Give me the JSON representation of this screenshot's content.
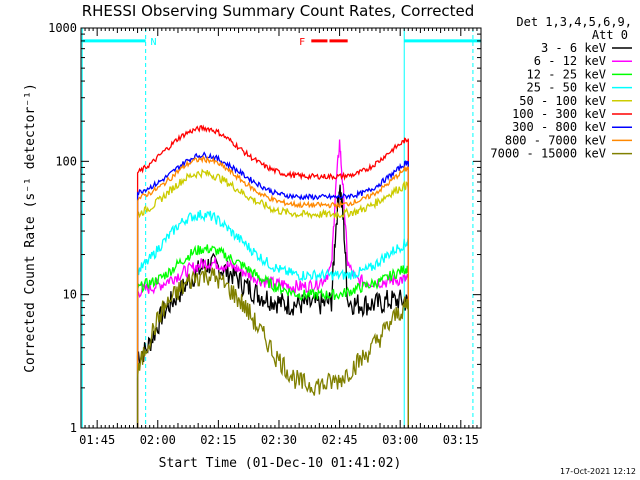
{
  "chart_data": {
    "type": "line",
    "title": "RHESSI Observing Summary Count Rates, Corrected",
    "xlabel": "Start Time (01-Dec-10 01:41:02)",
    "ylabel": "Corrected Count Rate (s⁻¹ detector⁻¹)",
    "yscale": "log",
    "ylim": [
      1,
      1000
    ],
    "y_tick_labels": [
      "1",
      "10",
      "100",
      "1000"
    ],
    "xlim_minutes_after_0141": [
      0,
      99
    ],
    "x_tick_labels": [
      "01:45",
      "02:00",
      "02:15",
      "02:30",
      "02:45",
      "03:00",
      "03:15"
    ],
    "x_tick_minutes": [
      4,
      19,
      34,
      49,
      64,
      79,
      94
    ],
    "detectors": "Det 1,3,4,5,6,9,",
    "attenuator": "Att 0",
    "legend_position": "right",
    "series": [
      {
        "name": "3 - 6 keV",
        "color": "#000000",
        "x": [
          14,
          16,
          18,
          20,
          22,
          24,
          26,
          28,
          30,
          32,
          34,
          36,
          38,
          40,
          42,
          44,
          46,
          48,
          50,
          52,
          54,
          56,
          58,
          60,
          62,
          63,
          64,
          65,
          66,
          68,
          70,
          72,
          74,
          76,
          78,
          80,
          81
        ],
        "y": [
          3.5,
          3.8,
          5,
          7,
          8.5,
          10,
          12,
          14,
          16,
          17,
          16,
          15,
          14,
          12,
          11,
          10,
          9.5,
          9,
          8.5,
          8.5,
          8.5,
          8.5,
          8.5,
          8.5,
          9,
          30,
          68,
          35,
          9,
          8.5,
          8.5,
          8.5,
          8.5,
          9,
          9,
          9,
          8.5
        ]
      },
      {
        "name": "6 - 12 keV",
        "color": "#ff00ff",
        "x": [
          14,
          16,
          18,
          20,
          22,
          24,
          26,
          28,
          30,
          32,
          34,
          36,
          38,
          40,
          42,
          44,
          46,
          48,
          50,
          52,
          54,
          56,
          58,
          60,
          62,
          63,
          64,
          65,
          66,
          68,
          70,
          72,
          74,
          76,
          78,
          80,
          81
        ],
        "y": [
          10.5,
          11,
          11.5,
          12,
          13,
          14,
          15,
          16,
          17,
          17.5,
          17,
          16.5,
          16,
          15,
          14,
          13,
          12.5,
          12,
          12,
          11.5,
          11.5,
          11.5,
          12,
          13,
          16,
          60,
          140,
          55,
          17,
          13,
          12.5,
          12.5,
          12.5,
          12.5,
          13,
          13,
          13
        ]
      },
      {
        "name": "12 - 25 keV",
        "color": "#00ff00",
        "x": [
          14,
          16,
          18,
          20,
          22,
          24,
          26,
          28,
          30,
          32,
          34,
          36,
          38,
          40,
          42,
          44,
          46,
          48,
          50,
          52,
          54,
          56,
          58,
          60,
          62,
          64,
          66,
          68,
          70,
          72,
          74,
          76,
          78,
          80,
          81
        ],
        "y": [
          11,
          12,
          12.5,
          13.5,
          15,
          17,
          19,
          21,
          22,
          22,
          21,
          19.5,
          18,
          16.5,
          15,
          13.5,
          12.5,
          11.5,
          11,
          10.5,
          10,
          10,
          10,
          10,
          10,
          10,
          10.5,
          11,
          11.5,
          12,
          12.5,
          13.5,
          14.5,
          15.5,
          16
        ]
      },
      {
        "name": "25 - 50 keV",
        "color": "#00ffff",
        "x": [
          14,
          16,
          18,
          20,
          22,
          24,
          26,
          28,
          30,
          32,
          34,
          36,
          38,
          40,
          42,
          44,
          46,
          48,
          50,
          52,
          54,
          56,
          58,
          60,
          62,
          64,
          66,
          68,
          70,
          72,
          74,
          76,
          78,
          80,
          81
        ],
        "y": [
          15,
          17,
          20,
          24,
          28,
          33,
          37,
          39,
          40,
          39,
          36,
          32,
          28,
          25,
          22,
          19.5,
          17.5,
          16,
          15,
          14.5,
          14,
          14,
          14,
          14,
          14,
          14,
          14,
          14.5,
          15,
          16,
          18,
          20,
          22,
          24,
          25
        ]
      },
      {
        "name": "50 - 100 keV",
        "color": "#cccc00",
        "x": [
          14,
          16,
          18,
          20,
          22,
          24,
          26,
          28,
          30,
          32,
          34,
          36,
          38,
          40,
          42,
          44,
          46,
          48,
          50,
          52,
          54,
          56,
          58,
          60,
          62,
          64,
          66,
          68,
          70,
          72,
          74,
          76,
          78,
          80,
          81
        ],
        "y": [
          40,
          43,
          47,
          53,
          60,
          68,
          75,
          80,
          82,
          80,
          76,
          70,
          64,
          58,
          53,
          49,
          46,
          43,
          42,
          41,
          40,
          40,
          40,
          40,
          40,
          40,
          41,
          42,
          44,
          47,
          51,
          56,
          61,
          65,
          67
        ]
      },
      {
        "name": "100 - 300 keV",
        "color": "#ff0000",
        "x": [
          14,
          16,
          18,
          20,
          22,
          24,
          26,
          28,
          30,
          32,
          34,
          36,
          38,
          40,
          42,
          44,
          46,
          48,
          50,
          52,
          54,
          56,
          58,
          60,
          62,
          64,
          66,
          68,
          70,
          72,
          74,
          76,
          78,
          80,
          81
        ],
        "y": [
          82,
          90,
          100,
          115,
          130,
          148,
          162,
          172,
          178,
          175,
          165,
          150,
          135,
          120,
          108,
          98,
          90,
          85,
          81,
          79,
          78,
          77,
          77,
          77,
          77,
          77,
          78,
          80,
          85,
          92,
          102,
          115,
          128,
          142,
          148
        ]
      },
      {
        "name": "300 - 800 keV",
        "color": "#0000ff",
        "x": [
          14,
          16,
          18,
          20,
          22,
          24,
          26,
          28,
          30,
          32,
          34,
          36,
          38,
          40,
          42,
          44,
          46,
          48,
          50,
          52,
          54,
          56,
          58,
          60,
          62,
          64,
          66,
          68,
          70,
          72,
          74,
          76,
          78,
          80,
          81
        ],
        "y": [
          58,
          62,
          66,
          72,
          80,
          90,
          100,
          108,
          112,
          110,
          104,
          96,
          88,
          80,
          73,
          67,
          62,
          58,
          56,
          55,
          54,
          54,
          54,
          54,
          54,
          54,
          55,
          56,
          58,
          62,
          68,
          76,
          85,
          95,
          100
        ]
      },
      {
        "name": "800 - 7000 keV",
        "color": "#ff8800",
        "x": [
          14,
          16,
          18,
          20,
          22,
          24,
          26,
          28,
          30,
          32,
          34,
          36,
          38,
          40,
          42,
          44,
          46,
          48,
          50,
          52,
          54,
          56,
          58,
          60,
          62,
          64,
          66,
          68,
          70,
          72,
          74,
          76,
          78,
          80,
          81
        ],
        "y": [
          52,
          56,
          60,
          66,
          74,
          84,
          94,
          101,
          104,
          102,
          96,
          88,
          79,
          71,
          64,
          58,
          54,
          51,
          49,
          48,
          47,
          47,
          47,
          47,
          47,
          47,
          48,
          50,
          52,
          56,
          61,
          68,
          77,
          86,
          90
        ]
      },
      {
        "name": "7000 - 15000 keV",
        "color": "#808000",
        "x": [
          14,
          16,
          18,
          20,
          22,
          24,
          26,
          28,
          30,
          32,
          34,
          36,
          38,
          40,
          42,
          44,
          46,
          48,
          50,
          52,
          54,
          56,
          58,
          60,
          62,
          64,
          66,
          68,
          70,
          72,
          74,
          76,
          78,
          80,
          81
        ],
        "y": [
          2.5,
          4,
          5.5,
          7.5,
          9,
          10.5,
          12,
          13.5,
          14,
          14,
          13,
          11.5,
          10,
          8.5,
          7,
          5.5,
          4.5,
          3.5,
          3,
          2.5,
          2.2,
          2.1,
          2.1,
          2.1,
          2.2,
          2.3,
          2.6,
          3,
          3.4,
          4,
          4.8,
          5.8,
          7,
          8,
          8.5
        ]
      }
    ],
    "markers": [
      {
        "label": "N",
        "color": "#00ffff",
        "segments_minutes": [
          [
            0,
            16
          ],
          [
            80,
            99
          ]
        ],
        "level": 800
      },
      {
        "label": "F",
        "color": "#ff0000",
        "segments_minutes": [
          [
            57,
            61
          ],
          [
            61.5,
            66
          ]
        ],
        "level": 800
      }
    ]
  },
  "footer": {
    "timestamp": "17-Oct-2021 12:12"
  }
}
